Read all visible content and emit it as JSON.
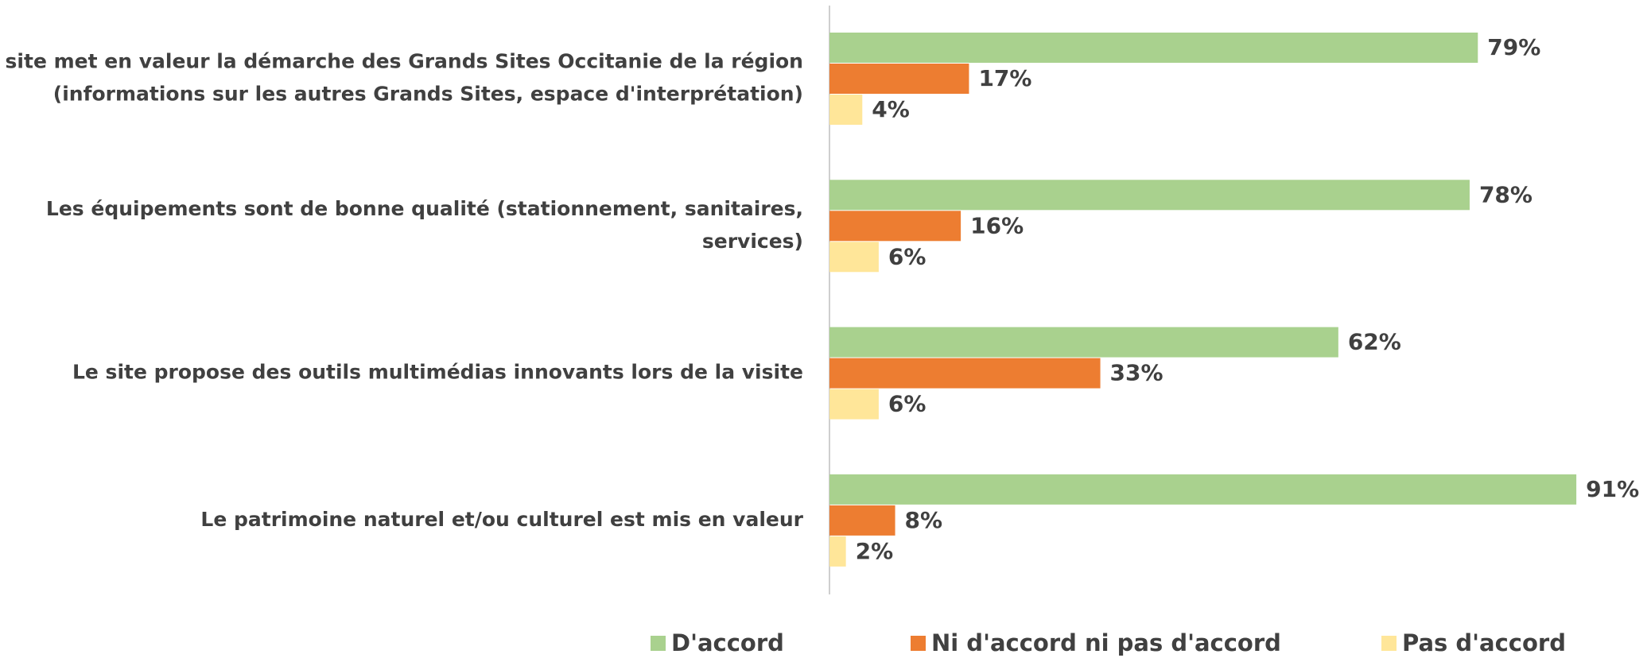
{
  "chart_data": {
    "type": "hbar",
    "categories": [
      [
        "Le site met en valeur la démarche des Grands Sites Occitanie de la région",
        "(informations sur les autres Grands Sites, espace d'interprétation)"
      ],
      [
        "Les équipements sont de bonne qualité (stationnement, sanitaires,",
        "services)"
      ],
      [
        "Le site propose des outils multimédias innovants lors de la visite"
      ],
      [
        "Le patrimoine naturel et/ou culturel est mis en valeur"
      ]
    ],
    "series": [
      {
        "name": "D'accord",
        "color": "#a9d18e",
        "values": [
          79,
          78,
          62,
          91
        ],
        "value_labels": [
          "79%",
          "78%",
          "62%",
          "91%"
        ]
      },
      {
        "name": "Ni d'accord ni pas d'accord",
        "color": "#ed7d31",
        "values": [
          17,
          16,
          33,
          8
        ],
        "value_labels": [
          "17%",
          "16%",
          "33%",
          "8%"
        ]
      },
      {
        "name": "Pas d'accord",
        "color": "#ffe699",
        "values": [
          4,
          6,
          6,
          2
        ],
        "value_labels": [
          "4%",
          "6%",
          "6%",
          "2%"
        ]
      }
    ],
    "xlim": [
      0,
      100
    ],
    "legend": "bottom"
  }
}
